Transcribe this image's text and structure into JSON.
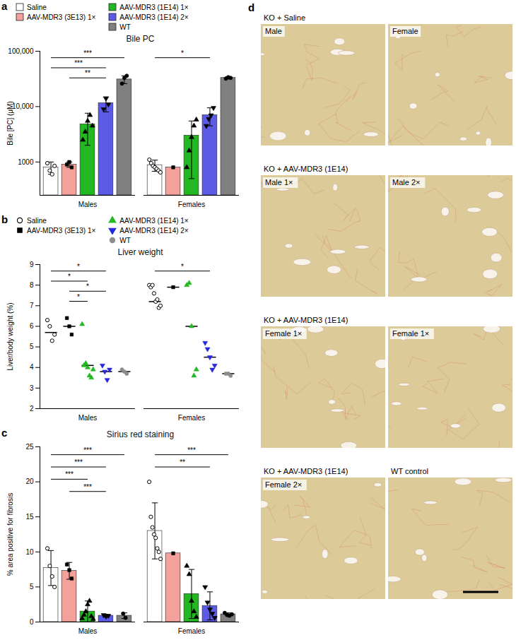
{
  "chart_data": [
    {
      "panel": "a",
      "type": "bar",
      "title": "Bile PC",
      "y_label": "Bile [PC] (μM)",
      "log": "y",
      "legend": "top",
      "categories": [
        "Males",
        "Females"
      ],
      "ylim": [
        250,
        100000
      ],
      "yticks": [
        1000,
        {
          "value": 10000,
          "label": "10,000"
        },
        {
          "value": 100000,
          "label": "100,000"
        }
      ],
      "series": [
        {
          "name": "Saline",
          "color": "#ffffff",
          "marker": "circle-open",
          "values": [
            800,
            880
          ],
          "errors": [
            200,
            200
          ],
          "points": [
            [
              950,
              700,
              600,
              850
            ],
            [
              1100,
              950,
              850,
              800,
              750,
              700,
              650
            ]
          ]
        },
        {
          "name": "AAV-MDR3 (3E13) 1×",
          "color": "#f4a19b",
          "marker": "square",
          "values": [
            900,
            800
          ],
          "errors": [
            100,
            null
          ],
          "points": [
            [
              900,
              1000,
              800
            ],
            [
              800
            ]
          ]
        },
        {
          "name": "AAV-MDR3 (1E14) 1×",
          "color": "#22b822",
          "marker": "triangle",
          "values": [
            4800,
            3000
          ],
          "errors": [
            2800,
            2500
          ],
          "points": [
            [
              2500,
              3500,
              5500,
              7000,
              4500
            ],
            [
              800,
              1600,
              2800,
              4500,
              5800
            ]
          ]
        },
        {
          "name": "AAV-MDR3 (1E14) 2×",
          "color": "#5b5be8",
          "marker": "triangle-down",
          "values": [
            11500,
            7000
          ],
          "errors": [
            3500,
            2500
          ],
          "points": [
            [
              9000,
              14000,
              11000
            ],
            [
              4500,
              6000,
              7000,
              9500
            ]
          ]
        },
        {
          "name": "WT",
          "color": "#808080",
          "marker": "circle",
          "values": [
            31000,
            33000
          ],
          "errors": [
            5000,
            1500
          ],
          "points": [
            [
              26000,
              33000,
              36000
            ],
            [
              32000,
              34000,
              33000
            ]
          ]
        }
      ],
      "significance": [
        {
          "category": "Males",
          "from": "Saline",
          "to": "WT",
          "label": "***"
        },
        {
          "category": "Males",
          "from": "Saline",
          "to": "AAV-MDR3 (1E14) 2×",
          "label": "***"
        },
        {
          "category": "Males",
          "from": "AAV-MDR3 (3E13) 1×",
          "to": "AAV-MDR3 (1E14) 2×",
          "label": "**"
        },
        {
          "category": "Females",
          "from": "Saline",
          "to": "AAV-MDR3 (1E14) 2×",
          "label": "*"
        }
      ]
    },
    {
      "panel": "b",
      "type": "scatter",
      "title": "Liver weight",
      "y_label": "Liver/body weight (%)",
      "legend": "top",
      "categories": [
        "Males",
        "Females"
      ],
      "ylim": [
        2,
        9
      ],
      "yticks": [
        2,
        3,
        4,
        5,
        6,
        7,
        8,
        9
      ],
      "series": [
        {
          "name": "Saline",
          "color": "#000000",
          "marker": "circle-open",
          "values": [
            5.7,
            7.2
          ],
          "points": [
            [
              6.3,
              6.0,
              5.3,
              5.6
            ],
            [
              8.0,
              7.9,
              8.0,
              7.6,
              7.2,
              7.3,
              6.9,
              7.0
            ]
          ]
        },
        {
          "name": "AAV-MDR3 (3E13) 1×",
          "color": "#000000",
          "marker": "square",
          "values": [
            6.0,
            7.9
          ],
          "points": [
            [
              6.4,
              6.0,
              5.6
            ],
            [
              7.9
            ]
          ]
        },
        {
          "name": "AAV-MDR3 (1E14) 1×",
          "color": "#22b822",
          "marker": "triangle",
          "values": [
            4.1,
            6.0
          ],
          "points": [
            [
              6.1,
              4.1,
              4.2,
              4.0,
              3.6,
              3.5,
              3.9
            ],
            [
              8.0,
              8.1,
              6.0,
              3.6,
              3.9
            ]
          ]
        },
        {
          "name": "AAV-MDR3 (1E14) 2×",
          "color": "#2727e0",
          "marker": "triangle-down",
          "values": [
            3.8,
            4.5
          ],
          "points": [
            [
              4.1,
              3.8,
              3.4,
              3.9
            ],
            [
              5.2,
              4.9,
              4.5,
              3.9,
              4.1
            ]
          ]
        },
        {
          "name": "WT",
          "color": "#8c8c8c",
          "marker": "circle",
          "values": [
            3.8,
            3.7
          ],
          "points": [
            [
              3.9,
              3.8,
              3.7
            ],
            [
              3.7,
              3.7,
              3.6
            ]
          ]
        }
      ],
      "significance": [
        {
          "category": "Males",
          "from": "Saline",
          "to": "AAV-MDR3 (1E14) 2×",
          "label": "*"
        },
        {
          "category": "Males",
          "from": "Saline",
          "to": "AAV-MDR3 (1E14) 1×",
          "label": "*"
        },
        {
          "category": "Males",
          "from": "AAV-MDR3 (3E13) 1×",
          "to": "AAV-MDR3 (1E14) 2×",
          "label": "*"
        },
        {
          "category": "Males",
          "from": "AAV-MDR3 (3E13) 1×",
          "to": "AAV-MDR3 (1E14) 1×",
          "label": "*"
        },
        {
          "category": "Females",
          "from": "Saline",
          "to": "AAV-MDR3 (1E14) 2×",
          "label": "*"
        }
      ]
    },
    {
      "panel": "c",
      "type": "bar",
      "title": "Sirius red staining",
      "y_label": "% area positive for fibrosis",
      "categories": [
        "Males",
        "Females"
      ],
      "ylim": [
        0,
        25
      ],
      "yticks": [
        0,
        5,
        10,
        15,
        20,
        25
      ],
      "series": [
        {
          "name": "Saline",
          "color": "#ffffff",
          "marker": "circle-open",
          "values": [
            7.7,
            13
          ],
          "errors": [
            2.5,
            4
          ],
          "points": [
            [
              10.5,
              8,
              6.5,
              5
            ],
            [
              20,
              15,
              13.5,
              12.5,
              12,
              10.5,
              10,
              9
            ]
          ]
        },
        {
          "name": "AAV-MDR3 (3E13) 1×",
          "color": "#f4a19b",
          "marker": "square",
          "values": [
            7.3,
            9.8
          ],
          "errors": [
            1.2,
            null
          ],
          "points": [
            [
              8.2,
              7.4,
              6.2
            ],
            [
              9.8
            ]
          ]
        },
        {
          "name": "AAV-MDR3 (1E14) 1×",
          "color": "#22b822",
          "marker": "triangle",
          "values": [
            1.5,
            4
          ],
          "errors": [
            1.5,
            3.5
          ],
          "points": [
            [
              0.5,
              1,
              1.5,
              2.5,
              3,
              0.8,
              0.4
            ],
            [
              8,
              6.8,
              3,
              1.5,
              0.7
            ]
          ]
        },
        {
          "name": "AAV-MDR3 (1E14) 2×",
          "color": "#5b5be8",
          "marker": "triangle-down",
          "values": [
            0.9,
            2.3
          ],
          "errors": [
            0.2,
            2
          ],
          "points": [
            [
              1,
              0.8,
              0.9
            ],
            [
              5,
              2.8,
              1.8,
              1.2,
              0.6
            ]
          ]
        },
        {
          "name": "WT",
          "color": "#808080",
          "marker": "circle",
          "values": [
            0.9,
            1.1
          ],
          "errors": [
            0.4,
            0.2
          ],
          "points": [
            [
              1.2,
              0.6
            ],
            [
              1.3,
              1,
              0.9,
              1.1
            ]
          ]
        }
      ],
      "significance": [
        {
          "category": "Males",
          "from": "Saline",
          "to": "WT",
          "label": "***"
        },
        {
          "category": "Males",
          "from": "Saline",
          "to": "AAV-MDR3 (1E14) 2×",
          "label": "***"
        },
        {
          "category": "Males",
          "from": "Saline",
          "to": "AAV-MDR3 (1E14) 1×",
          "label": "***"
        },
        {
          "category": "Males",
          "from": "AAV-MDR3 (3E13) 1×",
          "to": "AAV-MDR3 (1E14) 2×",
          "label": "***"
        },
        {
          "category": "Females",
          "from": "Saline",
          "to": "WT",
          "label": "***"
        },
        {
          "category": "Females",
          "from": "Saline",
          "to": "AAV-MDR3 (1E14) 2×",
          "label": "**"
        }
      ]
    }
  ],
  "image_panel": {
    "panel": "d",
    "rows": [
      {
        "headers": [
          "KO + Saline"
        ],
        "images": [
          {
            "label": "Male"
          },
          {
            "label": "Female"
          }
        ]
      },
      {
        "headers": [
          "KO + AAV-MDR3 (1E14)"
        ],
        "images": [
          {
            "label": "Male 1×"
          },
          {
            "label": "Male 2×"
          }
        ]
      },
      {
        "headers": [
          "KO + AAV-MDR3 (1E14)"
        ],
        "images": [
          {
            "label": "Female 1×"
          },
          {
            "label": "Female 1×"
          }
        ]
      },
      {
        "headers": [
          "KO + AAV-MDR3 (1E14)",
          "WT control"
        ],
        "images": [
          {
            "label": "Female 2×"
          },
          {}
        ]
      }
    ]
  }
}
